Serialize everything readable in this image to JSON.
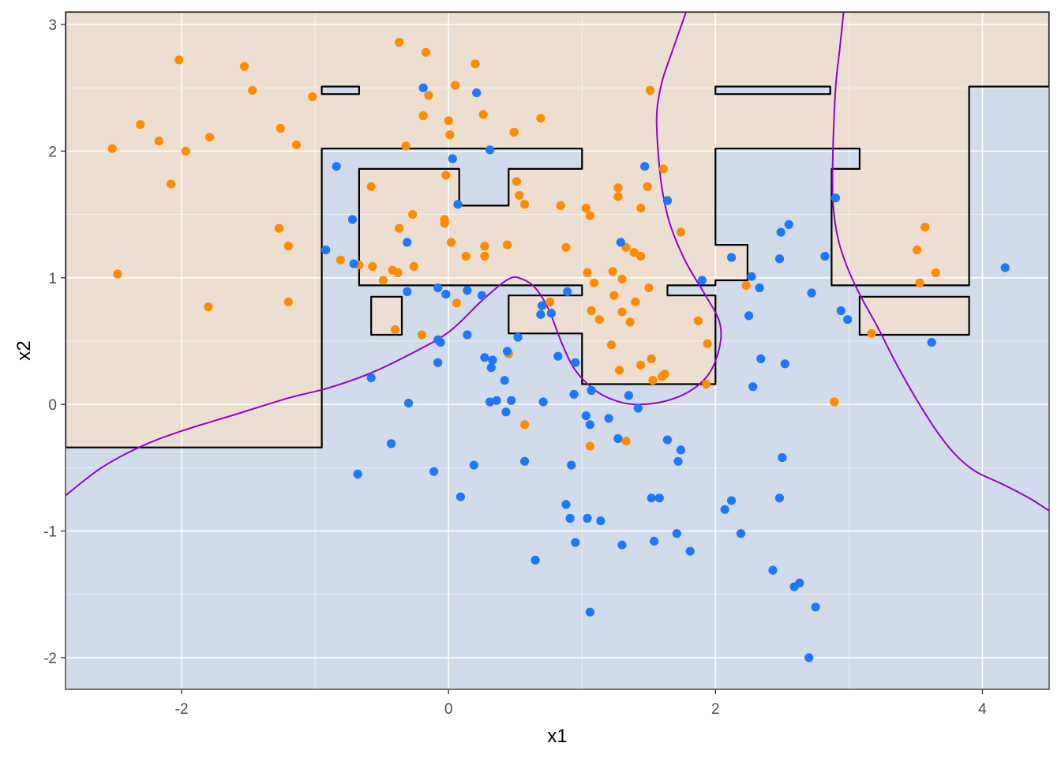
{
  "chart_data": {
    "type": "scatter",
    "title": "",
    "xlabel": "x1",
    "ylabel": "x2",
    "xlim": [
      -2.87,
      4.5
    ],
    "ylim": [
      -2.25,
      3.1
    ],
    "x_ticks": [
      -2,
      0,
      2,
      4
    ],
    "y_ticks": [
      -2,
      -1,
      0,
      1,
      2,
      3
    ],
    "x_tick_labels": [
      "-2",
      "0",
      "2",
      "4"
    ],
    "y_tick_labels": [
      "-2",
      "-1",
      "0",
      "1",
      "2",
      "3"
    ],
    "grid": true,
    "legend": "none",
    "colors": {
      "class_orange": "#ff8c00",
      "class_blue": "#1e77ff",
      "region_orange": "#ecdfd2",
      "region_blue": "#d1dbea",
      "tree_boundary": "#000000",
      "smooth_boundary": "#9400d3",
      "grid_major": "#ffffff"
    },
    "series": [
      {
        "class": "orange",
        "points": [
          [
            -2.52,
            2.02
          ],
          [
            -2.31,
            2.21
          ],
          [
            -2.17,
            2.08
          ],
          [
            -2.08,
            1.74
          ],
          [
            -2.02,
            2.72
          ],
          [
            -1.97,
            2.0
          ],
          [
            -1.79,
            2.11
          ],
          [
            -1.8,
            0.77
          ],
          [
            -2.48,
            1.03
          ],
          [
            -1.53,
            2.67
          ],
          [
            -1.47,
            2.48
          ],
          [
            -1.26,
            2.18
          ],
          [
            -1.27,
            1.39
          ],
          [
            -1.2,
            1.25
          ],
          [
            -1.2,
            0.81
          ],
          [
            -1.14,
            2.05
          ],
          [
            -1.02,
            2.43
          ],
          [
            -0.81,
            1.14
          ],
          [
            -0.67,
            1.1
          ],
          [
            -0.58,
            1.72
          ],
          [
            -0.57,
            1.09
          ],
          [
            -0.49,
            0.98
          ],
          [
            -0.42,
            1.06
          ],
          [
            -0.38,
            1.04
          ],
          [
            -0.4,
            0.59
          ],
          [
            -0.37,
            1.39
          ],
          [
            -0.32,
            2.04
          ],
          [
            -0.27,
            1.5
          ],
          [
            -0.26,
            1.09
          ],
          [
            -0.37,
            2.86
          ],
          [
            -0.19,
            2.28
          ],
          [
            -0.17,
            2.78
          ],
          [
            -0.15,
            2.44
          ],
          [
            -0.2,
            0.55
          ],
          [
            -0.03,
            1.46
          ],
          [
            -0.03,
            1.43
          ],
          [
            -0.02,
            1.81
          ],
          [
            0.0,
            2.24
          ],
          [
            0.01,
            2.13
          ],
          [
            0.02,
            1.28
          ],
          [
            0.05,
            2.52
          ],
          [
            0.06,
            0.8
          ],
          [
            0.13,
            1.17
          ],
          [
            0.2,
            2.69
          ],
          [
            0.26,
            2.29
          ],
          [
            0.27,
            1.25
          ],
          [
            0.27,
            1.17
          ],
          [
            0.44,
            1.26
          ],
          [
            0.45,
            0.4
          ],
          [
            0.49,
            2.15
          ],
          [
            0.51,
            1.76
          ],
          [
            0.53,
            1.65
          ],
          [
            0.57,
            -0.16
          ],
          [
            0.57,
            1.58
          ],
          [
            0.69,
            2.26
          ],
          [
            0.76,
            0.81
          ],
          [
            0.84,
            1.57
          ],
          [
            0.88,
            1.24
          ],
          [
            1.03,
            1.55
          ],
          [
            1.04,
            1.04
          ],
          [
            1.06,
            1.49
          ],
          [
            1.06,
            -0.33
          ],
          [
            1.07,
            0.74
          ],
          [
            1.09,
            0.96
          ],
          [
            1.13,
            0.67
          ],
          [
            1.22,
            0.47
          ],
          [
            1.23,
            1.05
          ],
          [
            1.24,
            0.86
          ],
          [
            1.27,
            1.71
          ],
          [
            1.27,
            1.64
          ],
          [
            1.28,
            0.27
          ],
          [
            1.3,
            0.99
          ],
          [
            1.3,
            0.73
          ],
          [
            1.33,
            1.24
          ],
          [
            1.33,
            -0.29
          ],
          [
            1.36,
            0.65
          ],
          [
            1.39,
            1.2
          ],
          [
            1.4,
            0.81
          ],
          [
            1.44,
            1.17
          ],
          [
            1.44,
            1.55
          ],
          [
            1.44,
            0.31
          ],
          [
            1.49,
            1.72
          ],
          [
            1.5,
            0.92
          ],
          [
            1.51,
            2.48
          ],
          [
            1.52,
            0.36
          ],
          [
            1.53,
            0.19
          ],
          [
            1.6,
            0.22
          ],
          [
            1.61,
            1.86
          ],
          [
            1.62,
            0.24
          ],
          [
            1.74,
            1.36
          ],
          [
            1.87,
            0.66
          ],
          [
            1.93,
            0.16
          ],
          [
            1.94,
            0.48
          ],
          [
            2.23,
            0.94
          ],
          [
            2.89,
            0.02
          ],
          [
            3.17,
            0.56
          ],
          [
            3.51,
            1.22
          ],
          [
            3.53,
            0.96
          ],
          [
            3.57,
            1.4
          ],
          [
            3.65,
            1.04
          ]
        ]
      },
      {
        "class": "blue",
        "points": [
          [
            -0.84,
            1.88
          ],
          [
            -0.92,
            1.22
          ],
          [
            -0.72,
            1.46
          ],
          [
            -0.71,
            1.11
          ],
          [
            -0.68,
            -0.55
          ],
          [
            -0.58,
            0.21
          ],
          [
            -0.43,
            -0.31
          ],
          [
            -0.31,
            1.28
          ],
          [
            -0.31,
            0.89
          ],
          [
            -0.3,
            0.01
          ],
          [
            -0.19,
            2.5
          ],
          [
            -0.11,
            -0.53
          ],
          [
            -0.08,
            0.92
          ],
          [
            -0.08,
            0.51
          ],
          [
            -0.08,
            0.33
          ],
          [
            -0.06,
            0.49
          ],
          [
            -0.02,
            0.87
          ],
          [
            0.03,
            1.94
          ],
          [
            0.07,
            1.58
          ],
          [
            0.09,
            -0.73
          ],
          [
            0.14,
            0.9
          ],
          [
            0.14,
            0.55
          ],
          [
            0.19,
            -0.48
          ],
          [
            0.21,
            2.46
          ],
          [
            0.25,
            0.86
          ],
          [
            0.27,
            0.37
          ],
          [
            0.31,
            2.01
          ],
          [
            0.31,
            0.02
          ],
          [
            0.32,
            0.29
          ],
          [
            0.33,
            0.35
          ],
          [
            0.36,
            0.03
          ],
          [
            0.42,
            0.19
          ],
          [
            0.43,
            -0.06
          ],
          [
            0.44,
            0.42
          ],
          [
            0.47,
            0.03
          ],
          [
            0.52,
            0.53
          ],
          [
            0.57,
            -0.45
          ],
          [
            0.65,
            -1.23
          ],
          [
            0.69,
            0.71
          ],
          [
            0.7,
            0.78
          ],
          [
            0.71,
            0.02
          ],
          [
            0.77,
            0.72
          ],
          [
            0.82,
            0.38
          ],
          [
            0.88,
            -0.79
          ],
          [
            0.89,
            0.89
          ],
          [
            0.91,
            -0.9
          ],
          [
            0.92,
            -0.48
          ],
          [
            0.94,
            0.08
          ],
          [
            0.95,
            0.33
          ],
          [
            0.95,
            -1.09
          ],
          [
            1.03,
            -0.09
          ],
          [
            1.04,
            -0.9
          ],
          [
            1.06,
            -0.16
          ],
          [
            1.06,
            -1.64
          ],
          [
            1.07,
            0.11
          ],
          [
            1.14,
            -0.92
          ],
          [
            1.2,
            -0.11
          ],
          [
            1.27,
            -0.27
          ],
          [
            1.29,
            1.28
          ],
          [
            1.3,
            -1.11
          ],
          [
            1.35,
            0.07
          ],
          [
            1.42,
            -0.03
          ],
          [
            1.47,
            1.88
          ],
          [
            1.52,
            -0.74
          ],
          [
            1.54,
            -1.08
          ],
          [
            1.58,
            -0.74
          ],
          [
            1.64,
            1.61
          ],
          [
            1.64,
            -0.28
          ],
          [
            1.71,
            -1.02
          ],
          [
            1.72,
            -0.45
          ],
          [
            1.74,
            -0.36
          ],
          [
            1.81,
            -1.16
          ],
          [
            1.9,
            0.98
          ],
          [
            2.07,
            -0.83
          ],
          [
            2.12,
            1.16
          ],
          [
            2.12,
            -0.76
          ],
          [
            2.19,
            -1.02
          ],
          [
            2.25,
            0.7
          ],
          [
            2.27,
            1.01
          ],
          [
            2.28,
            0.14
          ],
          [
            2.33,
            0.92
          ],
          [
            2.34,
            0.36
          ],
          [
            2.43,
            -1.31
          ],
          [
            2.48,
            1.15
          ],
          [
            2.48,
            -0.74
          ],
          [
            2.49,
            1.36
          ],
          [
            2.5,
            -0.42
          ],
          [
            2.52,
            0.32
          ],
          [
            2.55,
            1.42
          ],
          [
            2.59,
            -1.44
          ],
          [
            2.63,
            -1.41
          ],
          [
            2.7,
            -2.0
          ],
          [
            2.72,
            0.88
          ],
          [
            2.75,
            -1.6
          ],
          [
            2.82,
            1.17
          ],
          [
            2.9,
            1.63
          ],
          [
            2.94,
            0.74
          ],
          [
            2.99,
            0.67
          ],
          [
            3.62,
            0.49
          ],
          [
            4.17,
            1.08
          ]
        ]
      }
    ],
    "tree_boundary": {
      "description": "piecewise-constant decision regions (orange region polygons; remainder blue)",
      "orange_region_outline": [
        [
          -2.87,
          -0.34
        ],
        [
          -0.95,
          -0.34
        ],
        [
          -0.95,
          2.02
        ],
        [
          1.0,
          2.02
        ],
        [
          1.0,
          1.86
        ],
        [
          0.45,
          1.86
        ],
        [
          0.45,
          1.57
        ],
        [
          0.08,
          1.57
        ],
        [
          0.08,
          1.86
        ],
        [
          -0.67,
          1.86
        ],
        [
          -0.67,
          0.94
        ],
        [
          1.0,
          0.94
        ],
        [
          1.0,
          0.86
        ],
        [
          0.45,
          0.86
        ],
        [
          0.45,
          0.56
        ],
        [
          1.0,
          0.56
        ],
        [
          1.0,
          0.16
        ],
        [
          2.0,
          0.16
        ],
        [
          2.0,
          0.86
        ],
        [
          1.64,
          0.86
        ],
        [
          1.64,
          0.94
        ],
        [
          2.0,
          0.94
        ],
        [
          2.0,
          0.98
        ],
        [
          2.24,
          0.98
        ],
        [
          2.24,
          1.26
        ],
        [
          2.0,
          1.26
        ],
        [
          2.0,
          2.02
        ],
        [
          3.08,
          2.02
        ],
        [
          3.08,
          1.86
        ],
        [
          2.87,
          1.86
        ],
        [
          2.87,
          0.94
        ],
        [
          3.9,
          0.94
        ],
        [
          3.9,
          2.51
        ],
        [
          4.5,
          2.51
        ],
        [
          4.5,
          3.1
        ],
        [
          -2.87,
          3.1
        ]
      ],
      "blue_islands": [
        [
          [
            -0.95,
            2.45
          ],
          [
            -0.67,
            2.45
          ],
          [
            -0.67,
            2.51
          ],
          [
            -0.95,
            2.51
          ]
        ],
        [
          [
            2.0,
            2.45
          ],
          [
            2.86,
            2.45
          ],
          [
            2.86,
            2.51
          ],
          [
            2.0,
            2.51
          ]
        ]
      ],
      "orange_islands": [
        [
          [
            -0.58,
            0.55
          ],
          [
            -0.35,
            0.55
          ],
          [
            -0.35,
            0.85
          ],
          [
            -0.58,
            0.85
          ]
        ],
        [
          [
            3.08,
            0.55
          ],
          [
            3.9,
            0.55
          ],
          [
            3.9,
            0.85
          ],
          [
            3.08,
            0.85
          ]
        ]
      ]
    },
    "smooth_boundary": [
      [
        [
          -2.87,
          -0.72
        ],
        [
          -2.6,
          -0.5
        ],
        [
          -2.3,
          -0.33
        ],
        [
          -2.0,
          -0.21
        ],
        [
          -1.6,
          -0.08
        ],
        [
          -1.2,
          0.05
        ],
        [
          -0.9,
          0.13
        ],
        [
          -0.6,
          0.24
        ],
        [
          -0.3,
          0.39
        ],
        [
          0.0,
          0.57
        ],
        [
          0.25,
          0.82
        ],
        [
          0.45,
          0.99
        ],
        [
          0.55,
          0.99
        ],
        [
          0.65,
          0.92
        ],
        [
          0.75,
          0.75
        ],
        [
          0.85,
          0.48
        ],
        [
          0.95,
          0.27
        ],
        [
          1.1,
          0.11
        ],
        [
          1.25,
          0.03
        ],
        [
          1.4,
          0.0
        ],
        [
          1.6,
          0.02
        ],
        [
          1.8,
          0.1
        ],
        [
          1.95,
          0.24
        ],
        [
          2.03,
          0.45
        ],
        [
          2.03,
          0.65
        ],
        [
          1.92,
          0.87
        ],
        [
          1.78,
          1.12
        ],
        [
          1.66,
          1.42
        ],
        [
          1.6,
          1.7
        ],
        [
          1.57,
          2.0
        ],
        [
          1.56,
          2.3
        ],
        [
          1.6,
          2.55
        ],
        [
          1.68,
          2.8
        ],
        [
          1.78,
          3.1
        ]
      ],
      [
        [
          2.96,
          3.1
        ],
        [
          2.93,
          2.8
        ],
        [
          2.9,
          2.5
        ],
        [
          2.88,
          2.0
        ],
        [
          2.88,
          1.6
        ],
        [
          2.92,
          1.3
        ],
        [
          3.0,
          1.05
        ],
        [
          3.1,
          0.83
        ],
        [
          3.22,
          0.6
        ],
        [
          3.35,
          0.33
        ],
        [
          3.5,
          0.05
        ],
        [
          3.65,
          -0.2
        ],
        [
          3.8,
          -0.4
        ],
        [
          3.95,
          -0.53
        ],
        [
          4.15,
          -0.63
        ],
        [
          4.35,
          -0.74
        ],
        [
          4.5,
          -0.84
        ]
      ]
    ]
  }
}
